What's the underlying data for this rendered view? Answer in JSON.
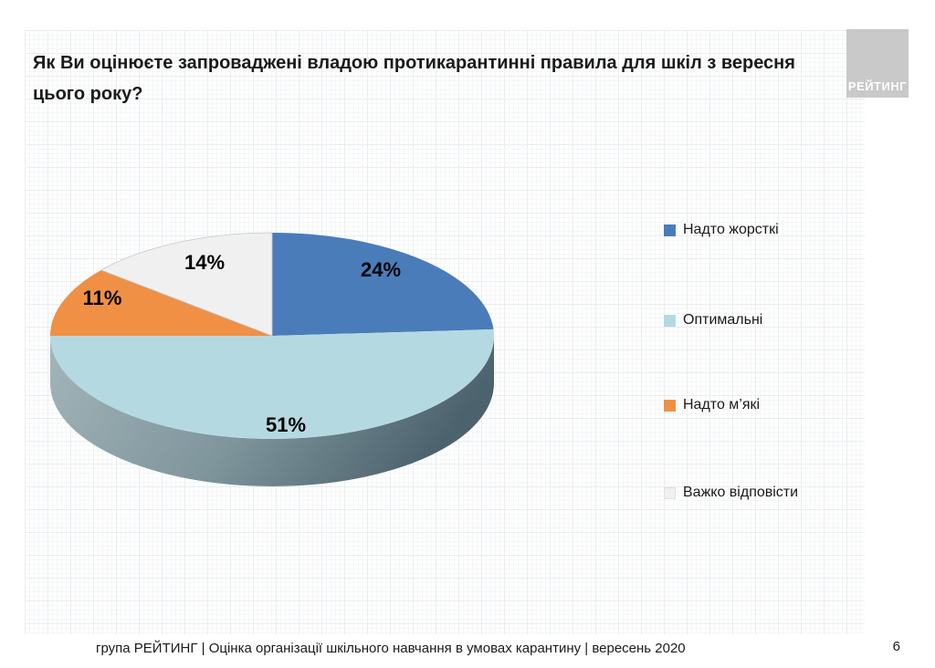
{
  "slide": {
    "title": "Як Ви оцінюєте запроваджені владою протикарантинні правила для шкіл з вересня цього року?",
    "logo_text": "РЕЙТИНГ",
    "footer": "група РЕЙТИНГ |  Оцінка організації шкільного навчання в умовах карантину | вересень  2020",
    "page_number": "6"
  },
  "chart_data": {
    "type": "pie",
    "style": "3d",
    "title": "Як Ви оцінюєте запроваджені владою протикарантинні правила для шкіл з вересня цього року?",
    "start_angle_deg": 0,
    "direction": "clockwise",
    "legend_position": "right",
    "slices": [
      {
        "label": "Надто жорсткі",
        "value": 24,
        "display": "24%",
        "color": "#4a7cba"
      },
      {
        "label": "Оптимальні",
        "value": 51,
        "display": "51%",
        "color": "#b5d9e1"
      },
      {
        "label": "Надто м’які",
        "value": 11,
        "display": "11%",
        "color": "#ef9045"
      },
      {
        "label": "Важко відповісти",
        "value": 14,
        "display": "14%",
        "color": "#f0f0f0",
        "outline": "#c3cacd"
      }
    ],
    "side_colors": {
      "left": "#a3b6ba",
      "mid": "#7f959c",
      "right": "#4c636e"
    }
  }
}
